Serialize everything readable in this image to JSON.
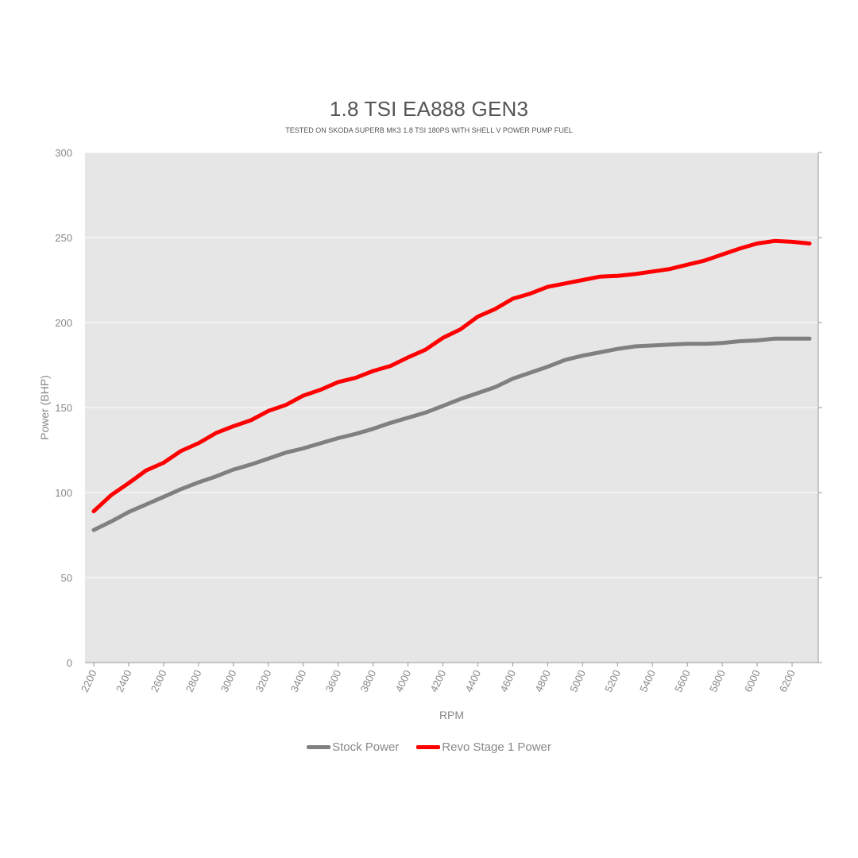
{
  "chart_data": {
    "type": "line",
    "title": "1.8 TSI EA888 GEN3",
    "subtitle": "TESTED ON SKODA SUPERB MK3 1.8 TSI 180PS WITH SHELL V POWER PUMP FUEL",
    "xlabel": "RPM",
    "ylabel": "Power (BHP)",
    "xlim": [
      2150,
      6350
    ],
    "ylim": [
      0,
      300
    ],
    "x_ticks": [
      2200,
      2400,
      2600,
      2800,
      3000,
      3200,
      3400,
      3600,
      3800,
      4000,
      4200,
      4400,
      4600,
      4800,
      5000,
      5200,
      5400,
      5600,
      5800,
      6000,
      6200
    ],
    "y_ticks": [
      0,
      50,
      100,
      150,
      200,
      250,
      300
    ],
    "grid": true,
    "legend_position": "bottom",
    "x": [
      2200,
      2300,
      2400,
      2500,
      2600,
      2700,
      2800,
      2900,
      3000,
      3100,
      3200,
      3300,
      3400,
      3500,
      3600,
      3700,
      3800,
      3900,
      4000,
      4100,
      4200,
      4300,
      4400,
      4500,
      4600,
      4700,
      4800,
      4900,
      5000,
      5100,
      5200,
      5300,
      5400,
      5500,
      5600,
      5700,
      5800,
      5900,
      6000,
      6100,
      6200,
      6300
    ],
    "series": [
      {
        "name": "Stock Power",
        "color": "#808080",
        "values": [
          78,
          83,
          88.5,
          93,
          97.5,
          102,
          106,
          109.5,
          113.5,
          116.5,
          120,
          123.5,
          126,
          129,
          132,
          134.5,
          137.5,
          141,
          144,
          147,
          151,
          155,
          158.5,
          162,
          167,
          170.5,
          174,
          178,
          180.5,
          182.5,
          184.5,
          186,
          186.5,
          187,
          187.5,
          187.5,
          188,
          189,
          189.5,
          190.5,
          190.5,
          190.5
        ]
      },
      {
        "name": "Revo Stage 1 Power",
        "color": "#ff0000",
        "values": [
          89,
          98.5,
          105.5,
          113,
          117.5,
          124.5,
          129,
          135,
          139,
          142.5,
          148,
          151.5,
          157,
          160.5,
          165,
          167.5,
          171.5,
          174.5,
          179.5,
          184,
          191,
          196,
          203.5,
          208,
          214,
          217,
          221,
          223,
          225,
          227,
          227.5,
          228.5,
          230,
          231.5,
          234,
          236.5,
          240,
          243.5,
          246.5,
          248,
          247.5,
          246.5
        ]
      }
    ]
  }
}
